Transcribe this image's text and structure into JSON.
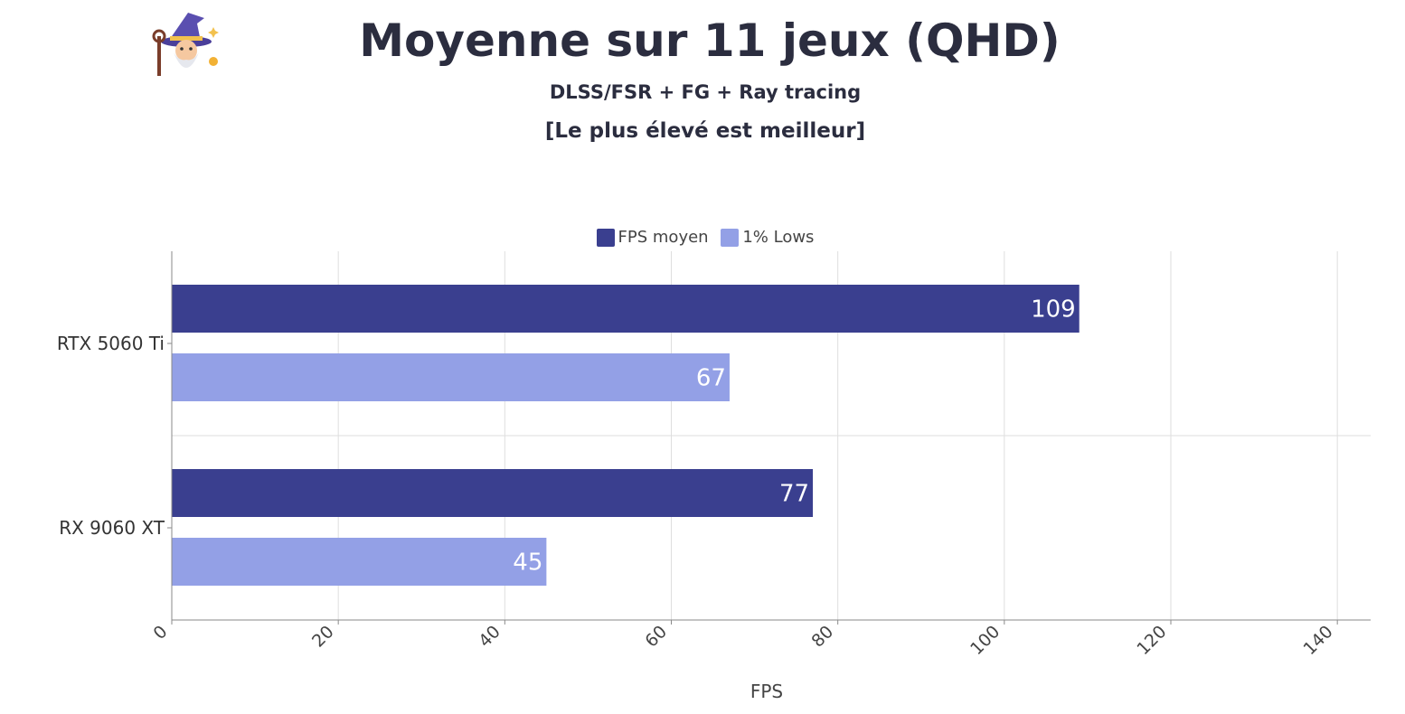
{
  "header": {
    "title": "Moyenne sur 11 jeux (QHD)",
    "subtitle": "DLSS/FSR + FG + Ray tracing",
    "subtitle2": "[Le plus élevé est meilleur]",
    "logo_icon": "wizard-icon"
  },
  "colors": {
    "fps_moyen": "#3a3f8f",
    "lows": "#93a0e6",
    "grid": "#dedede",
    "axis": "#8a8a8a"
  },
  "chart_data": {
    "type": "bar",
    "orientation": "horizontal",
    "categories": [
      "RTX 5060 Ti",
      "RX 9060 XT"
    ],
    "series": [
      {
        "name": "FPS moyen",
        "values": [
          109,
          77
        ]
      },
      {
        "name": "1% Lows",
        "values": [
          67,
          45
        ]
      }
    ],
    "xlabel": "FPS",
    "ylabel": "",
    "xlim": [
      0,
      144
    ],
    "xticks": [
      0,
      20,
      40,
      60,
      80,
      100,
      120,
      140
    ],
    "grid": true,
    "legend_position": "top-center",
    "data_labels": true
  }
}
